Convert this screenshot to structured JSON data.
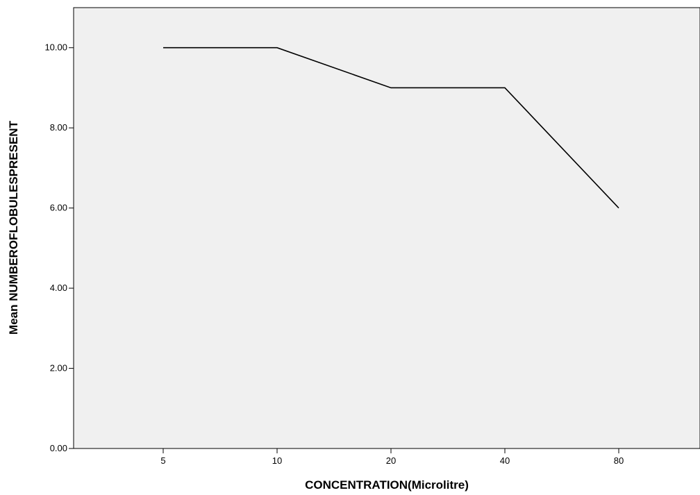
{
  "chart_data": {
    "type": "line",
    "title": "",
    "xlabel": "CONCENTRATION(Microlitre)",
    "ylabel": "Mean NUMBEROFLOBULESPRESENT",
    "categories": [
      "5",
      "10",
      "20",
      "40",
      "80"
    ],
    "series": [
      {
        "values": [
          10,
          10,
          9,
          9,
          6
        ]
      }
    ],
    "ylim": [
      0,
      11
    ],
    "yticks": [
      "0.00",
      "2.00",
      "4.00",
      "6.00",
      "8.00",
      "10.00"
    ],
    "grid": false,
    "legend": "none",
    "colors": {
      "plot_bg": "#f0f0f0",
      "line": "#000000",
      "axis": "#000000"
    }
  }
}
